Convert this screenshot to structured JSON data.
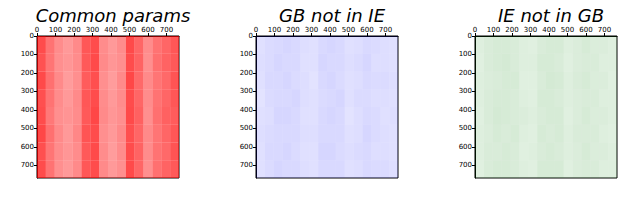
{
  "chart_data": [
    {
      "type": "heatmap",
      "title": "Common params",
      "color": "#ff0000",
      "xlim": [
        0,
        768
      ],
      "ylim": [
        0,
        768
      ],
      "xticks": [
        0,
        100,
        200,
        300,
        400,
        500,
        600,
        700
      ],
      "yticks": [
        0,
        100,
        200,
        300,
        400,
        500,
        600,
        700
      ],
      "x_bins": [
        0,
        48,
        96,
        144,
        192,
        240,
        288,
        336,
        384,
        432,
        480,
        528,
        576,
        624,
        672,
        720,
        768
      ],
      "y_bins": [
        0,
        96,
        192,
        288,
        384,
        480,
        576,
        672,
        768
      ],
      "density_range": [
        0,
        1
      ],
      "cells": [
        [
          0.7,
          0.55,
          0.45,
          0.4,
          0.46,
          0.66,
          0.7,
          0.45,
          0.4,
          0.45,
          0.71,
          0.6,
          0.45,
          0.55,
          0.6,
          0.66
        ],
        [
          0.68,
          0.54,
          0.44,
          0.41,
          0.45,
          0.65,
          0.71,
          0.46,
          0.41,
          0.44,
          0.7,
          0.61,
          0.44,
          0.56,
          0.61,
          0.65
        ],
        [
          0.71,
          0.56,
          0.46,
          0.39,
          0.44,
          0.64,
          0.69,
          0.44,
          0.39,
          0.46,
          0.72,
          0.59,
          0.46,
          0.54,
          0.59,
          0.67
        ],
        [
          0.69,
          0.55,
          0.45,
          0.4,
          0.46,
          0.66,
          0.7,
          0.45,
          0.4,
          0.45,
          0.7,
          0.6,
          0.45,
          0.55,
          0.6,
          0.66
        ],
        [
          0.7,
          0.53,
          0.44,
          0.42,
          0.45,
          0.65,
          0.72,
          0.46,
          0.41,
          0.44,
          0.71,
          0.62,
          0.44,
          0.56,
          0.62,
          0.64
        ],
        [
          0.72,
          0.56,
          0.46,
          0.4,
          0.47,
          0.67,
          0.7,
          0.44,
          0.4,
          0.46,
          0.69,
          0.6,
          0.46,
          0.54,
          0.6,
          0.66
        ],
        [
          0.69,
          0.54,
          0.45,
          0.41,
          0.45,
          0.65,
          0.71,
          0.45,
          0.39,
          0.45,
          0.7,
          0.61,
          0.45,
          0.55,
          0.59,
          0.67
        ],
        [
          0.7,
          0.55,
          0.44,
          0.4,
          0.46,
          0.66,
          0.7,
          0.46,
          0.4,
          0.44,
          0.71,
          0.6,
          0.44,
          0.56,
          0.61,
          0.65
        ]
      ]
    },
    {
      "type": "heatmap",
      "title": "GB not in IE",
      "color": "#0000ff",
      "xlim": [
        0,
        768
      ],
      "ylim": [
        0,
        768
      ],
      "xticks": [
        0,
        100,
        200,
        300,
        400,
        500,
        600,
        700
      ],
      "yticks": [
        0,
        100,
        200,
        300,
        400,
        500,
        600,
        700
      ],
      "x_bins": [
        0,
        48,
        96,
        144,
        192,
        240,
        288,
        336,
        384,
        432,
        480,
        528,
        576,
        624,
        672,
        720,
        768
      ],
      "y_bins": [
        0,
        96,
        192,
        288,
        384,
        480,
        576,
        672,
        768
      ],
      "density_range": [
        0,
        1
      ],
      "cells": [
        [
          0.12,
          0.14,
          0.15,
          0.16,
          0.15,
          0.13,
          0.12,
          0.15,
          0.16,
          0.15,
          0.12,
          0.13,
          0.15,
          0.14,
          0.13,
          0.12
        ],
        [
          0.13,
          0.14,
          0.16,
          0.15,
          0.15,
          0.12,
          0.12,
          0.16,
          0.15,
          0.15,
          0.13,
          0.14,
          0.16,
          0.13,
          0.13,
          0.12
        ],
        [
          0.12,
          0.15,
          0.15,
          0.16,
          0.14,
          0.13,
          0.11,
          0.15,
          0.16,
          0.14,
          0.12,
          0.13,
          0.15,
          0.14,
          0.14,
          0.13
        ],
        [
          0.11,
          0.14,
          0.15,
          0.15,
          0.16,
          0.13,
          0.12,
          0.14,
          0.15,
          0.16,
          0.12,
          0.14,
          0.14,
          0.13,
          0.13,
          0.12
        ],
        [
          0.12,
          0.13,
          0.16,
          0.16,
          0.15,
          0.12,
          0.12,
          0.15,
          0.16,
          0.15,
          0.11,
          0.13,
          0.15,
          0.14,
          0.12,
          0.13
        ],
        [
          0.13,
          0.14,
          0.15,
          0.15,
          0.15,
          0.13,
          0.13,
          0.15,
          0.15,
          0.15,
          0.12,
          0.13,
          0.16,
          0.14,
          0.13,
          0.12
        ],
        [
          0.12,
          0.15,
          0.15,
          0.16,
          0.14,
          0.12,
          0.12,
          0.16,
          0.16,
          0.14,
          0.13,
          0.14,
          0.15,
          0.13,
          0.13,
          0.12
        ],
        [
          0.12,
          0.14,
          0.16,
          0.15,
          0.15,
          0.13,
          0.12,
          0.15,
          0.15,
          0.15,
          0.12,
          0.13,
          0.15,
          0.14,
          0.14,
          0.13
        ]
      ]
    },
    {
      "type": "heatmap",
      "title": "IE not in GB",
      "color": "#008000",
      "xlim": [
        0,
        768
      ],
      "ylim": [
        0,
        768
      ],
      "xticks": [
        0,
        100,
        200,
        300,
        400,
        500,
        600,
        700
      ],
      "yticks": [
        0,
        100,
        200,
        300,
        400,
        500,
        600,
        700
      ],
      "x_bins": [
        0,
        48,
        96,
        144,
        192,
        240,
        288,
        336,
        384,
        432,
        480,
        528,
        576,
        624,
        672,
        720,
        768
      ],
      "y_bins": [
        0,
        96,
        192,
        288,
        384,
        480,
        576,
        672,
        768
      ],
      "density_range": [
        0,
        1
      ],
      "cells": [
        [
          0.13,
          0.15,
          0.16,
          0.16,
          0.15,
          0.13,
          0.12,
          0.15,
          0.16,
          0.16,
          0.13,
          0.14,
          0.16,
          0.14,
          0.14,
          0.13
        ],
        [
          0.12,
          0.15,
          0.16,
          0.17,
          0.15,
          0.13,
          0.13,
          0.16,
          0.16,
          0.15,
          0.12,
          0.14,
          0.15,
          0.15,
          0.13,
          0.13
        ],
        [
          0.13,
          0.14,
          0.15,
          0.16,
          0.16,
          0.12,
          0.12,
          0.15,
          0.17,
          0.16,
          0.13,
          0.15,
          0.16,
          0.14,
          0.14,
          0.12
        ],
        [
          0.13,
          0.15,
          0.16,
          0.16,
          0.15,
          0.13,
          0.12,
          0.16,
          0.16,
          0.15,
          0.13,
          0.14,
          0.15,
          0.15,
          0.13,
          0.13
        ],
        [
          0.12,
          0.15,
          0.17,
          0.16,
          0.15,
          0.14,
          0.13,
          0.15,
          0.16,
          0.16,
          0.12,
          0.14,
          0.16,
          0.14,
          0.14,
          0.13
        ],
        [
          0.13,
          0.14,
          0.16,
          0.15,
          0.16,
          0.13,
          0.12,
          0.16,
          0.15,
          0.16,
          0.13,
          0.15,
          0.15,
          0.15,
          0.13,
          0.12
        ],
        [
          0.13,
          0.15,
          0.15,
          0.16,
          0.15,
          0.12,
          0.13,
          0.15,
          0.16,
          0.15,
          0.13,
          0.14,
          0.16,
          0.14,
          0.14,
          0.13
        ],
        [
          0.12,
          0.15,
          0.16,
          0.16,
          0.15,
          0.13,
          0.12,
          0.16,
          0.16,
          0.16,
          0.12,
          0.14,
          0.15,
          0.15,
          0.13,
          0.13
        ]
      ]
    }
  ]
}
